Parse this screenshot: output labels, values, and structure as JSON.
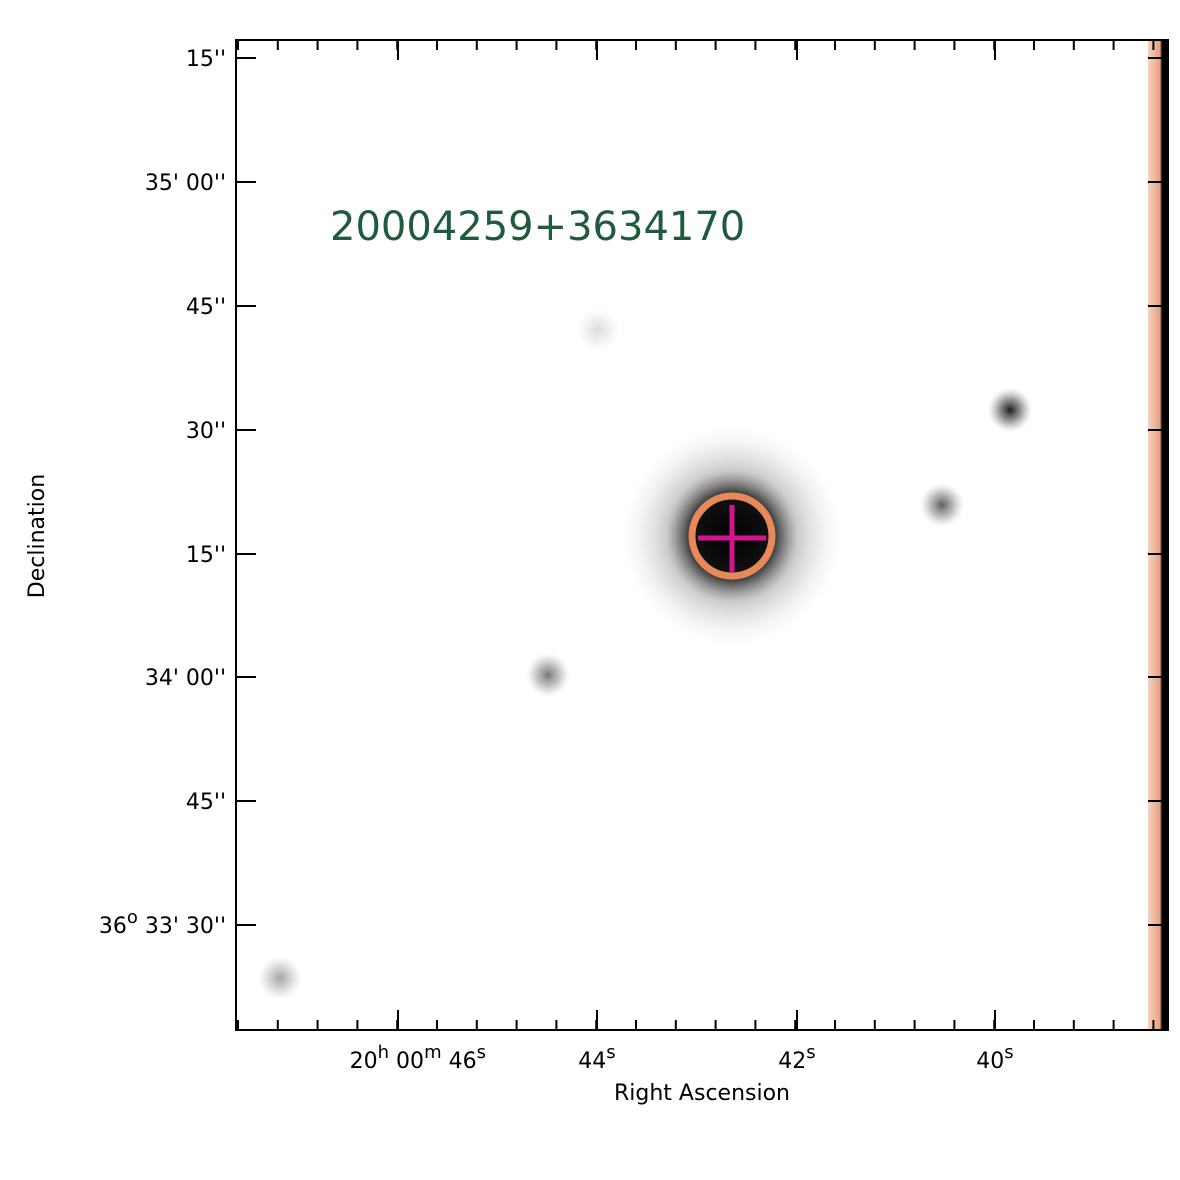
{
  "image": {
    "object_label": "20004259+3634170",
    "x_axis_title": "Right Ascension",
    "y_axis_title": "Declination",
    "x_tick_labels": [
      {
        "parts": [
          "20",
          "h",
          " 00",
          "m",
          " 46",
          "s"
        ]
      },
      {
        "parts": [
          "44",
          "s"
        ]
      },
      {
        "parts": [
          "42",
          "s"
        ]
      },
      {
        "parts": [
          "40",
          "s"
        ]
      }
    ],
    "y_tick_labels": [
      {
        "parts": [
          "15''"
        ]
      },
      {
        "parts": [
          "35' 00''"
        ]
      },
      {
        "parts": [
          "45''"
        ]
      },
      {
        "parts": [
          "30''"
        ]
      },
      {
        "parts": [
          "15''"
        ]
      },
      {
        "parts": [
          "34' 00''"
        ]
      },
      {
        "parts": [
          "45''"
        ]
      },
      {
        "parts": [
          "36",
          "o",
          " 33' 30''"
        ]
      }
    ]
  }
}
